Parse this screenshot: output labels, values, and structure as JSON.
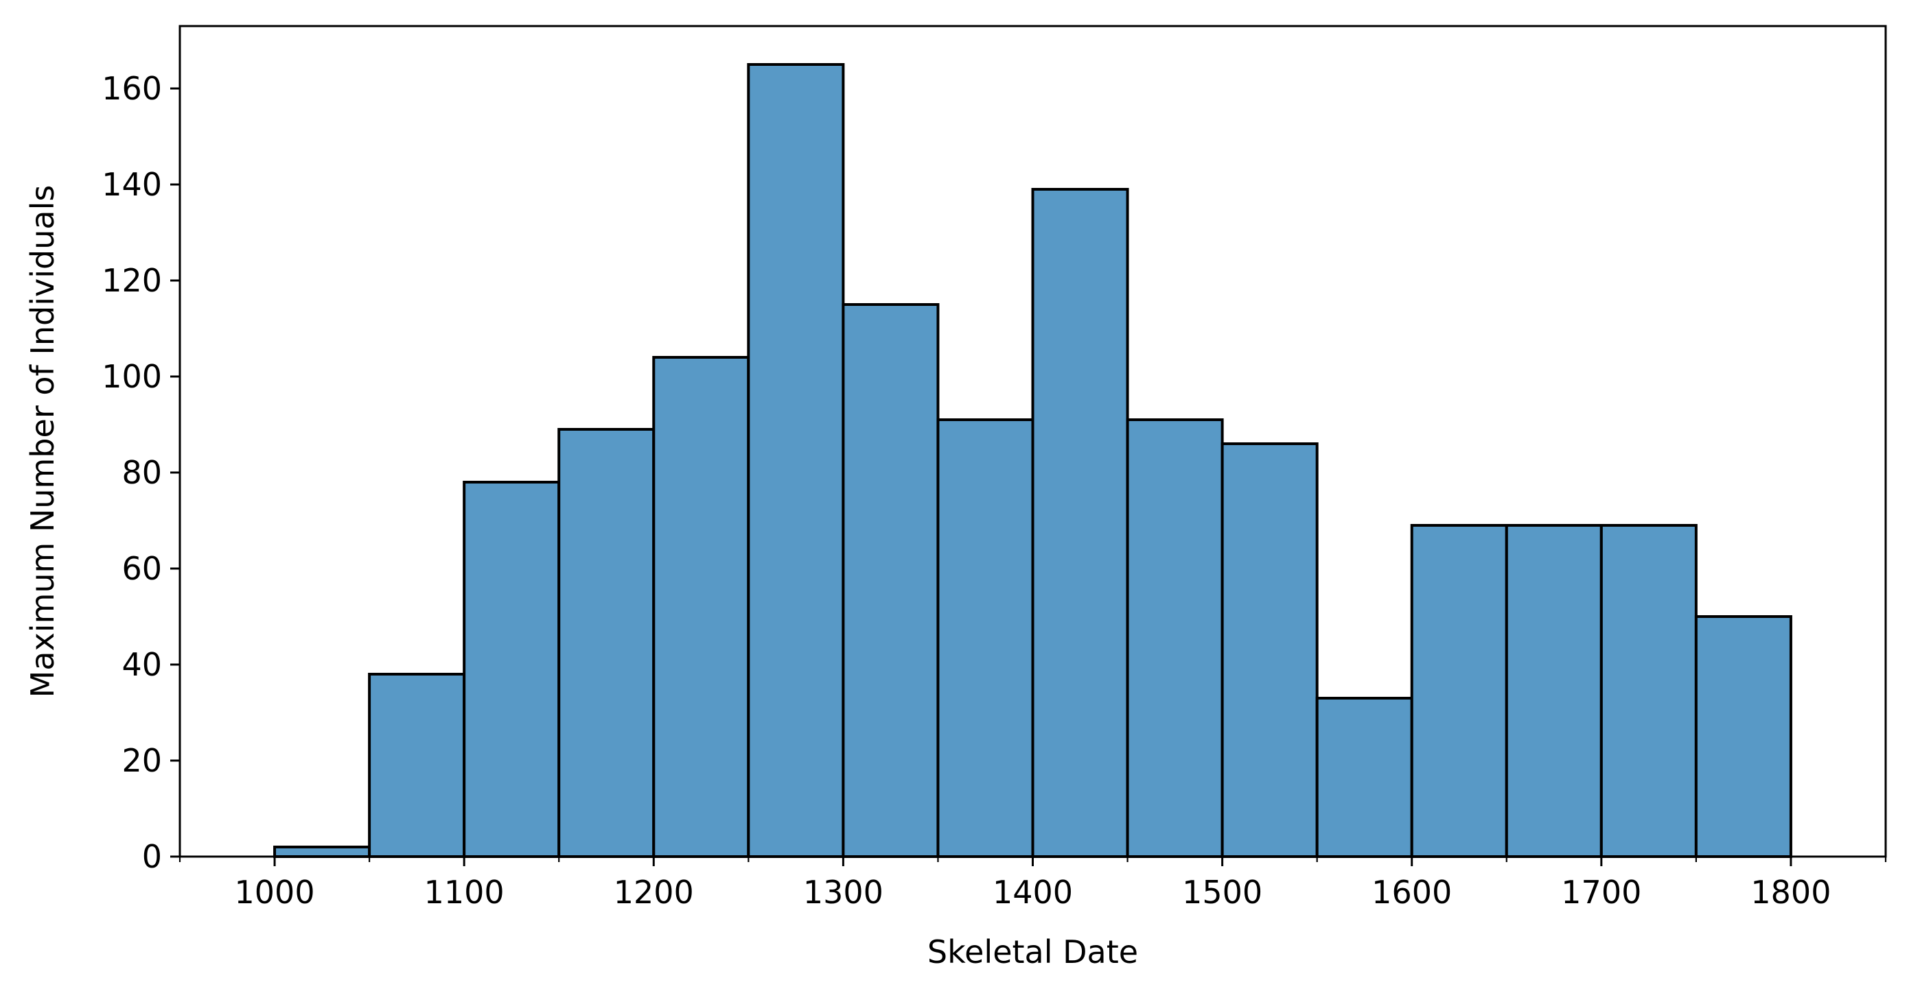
{
  "chart_data": {
    "type": "bar",
    "subtype": "histogram",
    "title": "",
    "xlabel": "Skeletal Date",
    "ylabel": "Maximum Number of Individuals",
    "xlim": [
      950,
      1850
    ],
    "ylim": [
      0,
      173
    ],
    "bin_width": 50,
    "bins": [
      {
        "start": 1000,
        "end": 1050,
        "value": 2
      },
      {
        "start": 1050,
        "end": 1100,
        "value": 38
      },
      {
        "start": 1100,
        "end": 1150,
        "value": 78
      },
      {
        "start": 1150,
        "end": 1200,
        "value": 89
      },
      {
        "start": 1200,
        "end": 1250,
        "value": 104
      },
      {
        "start": 1250,
        "end": 1300,
        "value": 165
      },
      {
        "start": 1300,
        "end": 1350,
        "value": 115
      },
      {
        "start": 1350,
        "end": 1400,
        "value": 91
      },
      {
        "start": 1400,
        "end": 1450,
        "value": 139
      },
      {
        "start": 1450,
        "end": 1500,
        "value": 91
      },
      {
        "start": 1500,
        "end": 1550,
        "value": 86
      },
      {
        "start": 1550,
        "end": 1600,
        "value": 33
      },
      {
        "start": 1600,
        "end": 1650,
        "value": 69
      },
      {
        "start": 1650,
        "end": 1700,
        "value": 69
      },
      {
        "start": 1700,
        "end": 1750,
        "value": 69
      },
      {
        "start": 1750,
        "end": 1800,
        "value": 50
      }
    ],
    "x_major_ticks": [
      1000,
      1100,
      1200,
      1300,
      1400,
      1500,
      1600,
      1700,
      1800
    ],
    "x_tick_labels": [
      "1000",
      "1100",
      "1200",
      "1300",
      "1400",
      "1500",
      "1600",
      "1700",
      "1800"
    ],
    "x_minor_ticks": [
      950,
      1050,
      1150,
      1250,
      1350,
      1450,
      1550,
      1650,
      1750,
      1850
    ],
    "y_ticks": [
      0,
      20,
      40,
      60,
      80,
      100,
      120,
      140,
      160
    ],
    "y_tick_labels": [
      "0",
      "20",
      "40",
      "60",
      "80",
      "100",
      "120",
      "140",
      "160"
    ],
    "grid": false,
    "legend": "none",
    "colors": {
      "bar_fill": "#5899c6",
      "bar_edge": "#000000",
      "axes": "#000000",
      "background": "#ffffff"
    }
  }
}
